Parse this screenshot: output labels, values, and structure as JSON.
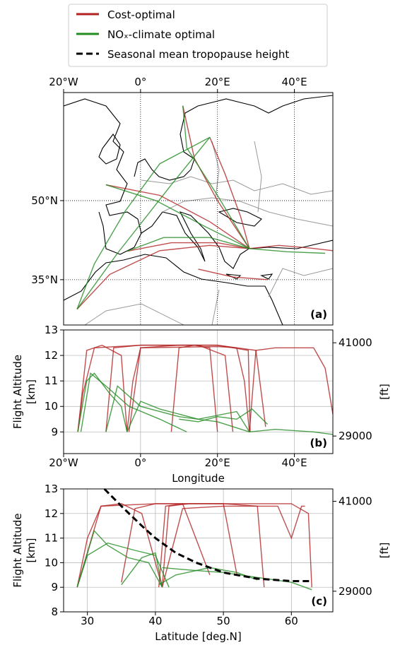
{
  "chart_data": [
    {
      "type": "map",
      "panel_label": "(a)",
      "xlim": [
        -20,
        50
      ],
      "ylim": [
        26.4,
        70.5
      ],
      "xticks": [
        {
          "value": -20,
          "label": "20°W"
        },
        {
          "value": 0,
          "label": "0°"
        },
        {
          "value": 20,
          "label": "20°E"
        },
        {
          "value": 40,
          "label": "40°E"
        }
      ],
      "yticks": [
        {
          "value": 35,
          "label": "35°N"
        },
        {
          "value": 50,
          "label": "50°N"
        }
      ],
      "grid": true,
      "series": [
        {
          "name": "Cost-optimal",
          "color": "#b22222",
          "routes": [
            {
              "x": [
                -16.5,
                -8,
                5,
                18,
                28.3
              ],
              "values": [
                29.4,
                36,
                40.5,
                41.5,
                40.9
              ]
            },
            {
              "x": [
                -3.5,
                8,
                20,
                28.3
              ],
              "values": [
                40.4,
                42,
                42,
                40.9
              ]
            },
            {
              "x": [
                -9,
                5,
                18,
                28.3
              ],
              "values": [
                53,
                51,
                46,
                40.9
              ]
            },
            {
              "x": [
                11,
                14,
                20,
                28.3
              ],
              "values": [
                68,
                58,
                50,
                40.9
              ]
            },
            {
              "x": [
                18,
                22,
                26,
                28.3
              ],
              "values": [
                62,
                55,
                47,
                40.9
              ]
            },
            {
              "x": [
                28.3,
                36,
                44,
                50
              ],
              "values": [
                40.9,
                41.5,
                41,
                40.5
              ]
            },
            {
              "x": [
                15,
                24,
                33
              ],
              "values": [
                37,
                35.5,
                35
              ]
            }
          ]
        },
        {
          "name": "NOₓ-climate optimal",
          "color": "#228b22",
          "routes": [
            {
              "x": [
                -16.5,
                -12,
                -4,
                5,
                18
              ],
              "values": [
                29.4,
                38,
                48,
                57,
                62
              ]
            },
            {
              "x": [
                -3.5,
                6,
                18,
                28.3
              ],
              "values": [
                40.4,
                43,
                43,
                40.9
              ]
            },
            {
              "x": [
                -9,
                4,
                17,
                28.3
              ],
              "values": [
                53,
                50,
                45,
                40.9
              ]
            },
            {
              "x": [
                11,
                12,
                20,
                28.3
              ],
              "values": [
                68,
                60,
                51,
                40.9
              ]
            },
            {
              "x": [
                -16.5,
                -6,
                8,
                18
              ],
              "values": [
                29.4,
                40,
                53,
                62
              ]
            },
            {
              "x": [
                28.3,
                38,
                48
              ],
              "values": [
                40.9,
                40.3,
                40
              ]
            }
          ]
        }
      ]
    },
    {
      "type": "line",
      "panel_label": "(b)",
      "xlabel": "Longitude",
      "ylabel": [
        "Flight Altitude",
        "[km]"
      ],
      "y2label": "[ft]",
      "xlim": [
        -20,
        50
      ],
      "ylim": [
        8.15,
        13
      ],
      "y2lim": [
        26740,
        42650
      ],
      "xticks": [
        {
          "value": -20,
          "label": "20°W"
        },
        {
          "value": 0,
          "label": "0°"
        },
        {
          "value": 20,
          "label": "20°E"
        },
        {
          "value": 40,
          "label": "40°E"
        }
      ],
      "yticks": [
        9,
        10,
        11,
        12,
        13
      ],
      "y2ticks": [
        29000,
        41000
      ],
      "grid": true,
      "series": [
        {
          "name": "Cost-optimal",
          "color": "#b22222",
          "routes": [
            {
              "x": [
                -16.3,
                -15,
                -12,
                0,
                20,
                28,
                28.5
              ],
              "values": [
                9.0,
                10.5,
                12.3,
                12.4,
                12.4,
                12.2,
                9.0
              ]
            },
            {
              "x": [
                -3.5,
                -2,
                0,
                20,
                25,
                27,
                28.3
              ],
              "values": [
                9.0,
                11,
                12.3,
                12.35,
                12.3,
                11,
                9.0
              ]
            },
            {
              "x": [
                -9,
                -7,
                0,
                15,
                22,
                24
              ],
              "values": [
                9.0,
                12.3,
                12.4,
                12.4,
                12,
                9.0
              ]
            },
            {
              "x": [
                28.3,
                30,
                35,
                45,
                48,
                50
              ],
              "values": [
                9.0,
                12.2,
                12.3,
                12.3,
                11.5,
                9.7
              ]
            },
            {
              "x": [
                -16.3,
                -14,
                -10,
                -5,
                -3.5
              ],
              "values": [
                9.0,
                12.2,
                12.4,
                12,
                9
              ]
            },
            {
              "x": [
                8,
                10,
                14,
                18,
                20
              ],
              "values": [
                9,
                12.3,
                12.4,
                12.3,
                9
              ]
            },
            {
              "x": [
                -3,
                0,
                10,
                20,
                30,
                32.5
              ],
              "values": [
                9,
                12.3,
                12.4,
                12.4,
                12.2,
                9.2
              ]
            }
          ]
        },
        {
          "name": "NOₓ-climate optimal",
          "color": "#228b22",
          "routes": [
            {
              "x": [
                -16.3,
                -14,
                -12,
                -8,
                -5,
                -3.5
              ],
              "values": [
                9,
                11,
                11.3,
                10.5,
                10,
                9
              ]
            },
            {
              "x": [
                -3.5,
                0,
                5,
                15,
                25,
                28.3
              ],
              "values": [
                9,
                10.2,
                9.9,
                9.5,
                9.8,
                9
              ]
            },
            {
              "x": [
                -9,
                -6,
                0,
                10,
                20,
                28.3
              ],
              "values": [
                9,
                10.8,
                10,
                9.6,
                9.4,
                9.0
              ]
            },
            {
              "x": [
                28.3,
                35,
                45,
                50
              ],
              "values": [
                9,
                9.1,
                9,
                8.9
              ]
            },
            {
              "x": [
                -15.5,
                -13,
                -9,
                -3,
                5,
                12
              ],
              "values": [
                9,
                11.3,
                10.8,
                10,
                9.5,
                9
              ]
            },
            {
              "x": [
                10,
                15,
                20,
                25,
                29,
                33
              ],
              "values": [
                9.5,
                9.4,
                9.6,
                9.5,
                9.9,
                9.3
              ]
            }
          ]
        }
      ]
    },
    {
      "type": "line",
      "panel_label": "(c)",
      "xlabel": "Latitude [deg.N]",
      "ylabel": [
        "Flight Altitude",
        "[km]"
      ],
      "y2label": "[ft]",
      "xlim": [
        26.5,
        66.1
      ],
      "ylim": [
        8,
        13
      ],
      "y2lim": [
        26247,
        42651
      ],
      "xticks": [
        30,
        40,
        50,
        60
      ],
      "yticks": [
        8,
        9,
        10,
        11,
        12,
        13
      ],
      "y2ticks": [
        29000,
        41000
      ],
      "grid": true,
      "series": [
        {
          "name": "Cost-optimal",
          "color": "#b22222",
          "routes": [
            {
              "x": [
                28.5,
                30,
                32,
                40,
                50,
                55,
                56
              ],
              "values": [
                9,
                11,
                12.3,
                12.4,
                12.4,
                12.3,
                9
              ]
            },
            {
              "x": [
                35,
                37,
                40,
                50,
                52
              ],
              "values": [
                9.2,
                12.2,
                12.4,
                12.4,
                9.5
              ]
            },
            {
              "x": [
                41,
                42,
                45,
                55,
                60,
                62.5,
                63
              ],
              "values": [
                9,
                12.3,
                12.4,
                12.4,
                12.4,
                12,
                9
              ]
            },
            {
              "x": [
                28.5,
                32,
                35,
                38,
                41
              ],
              "values": [
                9,
                12.3,
                12.4,
                12,
                9
              ]
            },
            {
              "x": [
                40.5,
                41.5,
                44,
                48
              ],
              "values": [
                9,
                12.3,
                12.4,
                9.5
              ]
            },
            {
              "x": [
                41,
                44,
                50,
                58,
                60,
                61.5,
                62
              ],
              "values": [
                9,
                12.2,
                12.3,
                12.3,
                11,
                12.3,
                12.3
              ]
            }
          ]
        },
        {
          "name": "NOₓ-climate optimal",
          "color": "#228b22",
          "routes": [
            {
              "x": [
                28.5,
                31,
                33,
                36,
                39,
                41
              ],
              "values": [
                9,
                11.3,
                10.7,
                10.2,
                10,
                9
              ]
            },
            {
              "x": [
                28.5,
                30,
                33,
                37,
                40,
                42
              ],
              "values": [
                9,
                10.3,
                10.8,
                10.5,
                10.3,
                9
              ]
            },
            {
              "x": [
                41,
                45,
                50,
                55,
                60,
                63
              ],
              "values": [
                9.8,
                9.7,
                9.6,
                9.4,
                9.2,
                8.9
              ]
            },
            {
              "x": [
                40.5,
                43,
                48,
                52,
                55
              ],
              "values": [
                9.1,
                9.5,
                9.8,
                9.6,
                9.3
              ]
            },
            {
              "x": [
                35,
                38,
                40,
                41
              ],
              "values": [
                9.1,
                10.2,
                10.4,
                9
              ]
            }
          ]
        },
        {
          "name": "Seasonal mean tropopause height",
          "color": "#000000",
          "dashed": true,
          "routes": [
            {
              "x": [
                32.5,
                35,
                38,
                40,
                43,
                46,
                50,
                55,
                60,
                63
              ],
              "values": [
                13,
                12.3,
                11.5,
                11,
                10.4,
                10,
                9.6,
                9.35,
                9.25,
                9.25
              ]
            }
          ]
        }
      ]
    }
  ]
}
